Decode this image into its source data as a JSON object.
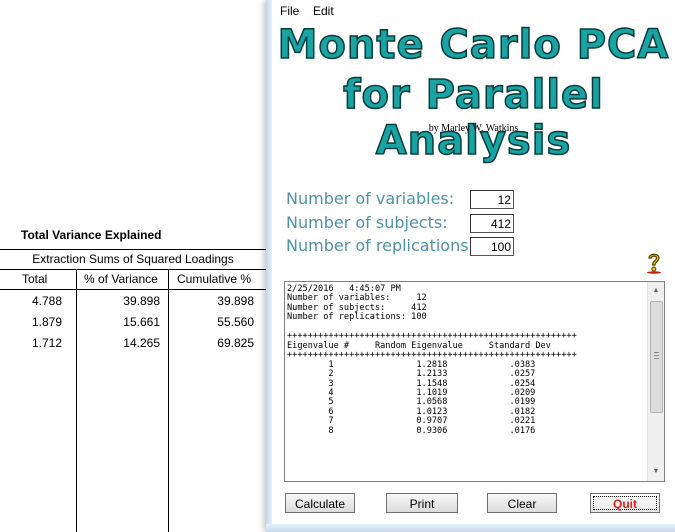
{
  "background_table": {
    "title": "Total Variance Explained",
    "group_header": "Extraction Sums of Squared Loadings",
    "columns": [
      "Total",
      "% of Variance",
      "Cumulative %"
    ],
    "rows": [
      [
        "4.788",
        "39.898",
        "39.898"
      ],
      [
        "1.879",
        "15.661",
        "55.560"
      ],
      [
        "1.712",
        "14.265",
        "69.825"
      ]
    ]
  },
  "window": {
    "menu": [
      "File",
      "Edit"
    ],
    "title_line1": "Monte Carlo PCA",
    "title_line2": "for Parallel Analysis",
    "byline": "by Marley W. Watkins",
    "params": [
      {
        "label": "Number of variables:",
        "value": "12"
      },
      {
        "label": "Number of subjects:",
        "value": "412"
      },
      {
        "label": "Number of replications:",
        "value": "100"
      }
    ],
    "help_icon": "question-mark-icon",
    "output": {
      "header_lines": [
        "2/25/2016   4:45:07 PM",
        "Number of variables:     12",
        "Number of subjects:     412",
        "Number of replications: 100",
        "",
        "++++++++++++++++++++++++++++++++++++++++++++++++++++++++",
        "Eigenvalue #     Random Eigenvalue     Standard Dev",
        "++++++++++++++++++++++++++++++++++++++++++++++++++++++++"
      ],
      "rows": [
        [
          "1",
          "1.2818",
          ".0383"
        ],
        [
          "2",
          "1.2133",
          ".0257"
        ],
        [
          "3",
          "1.1548",
          ".0254"
        ],
        [
          "4",
          "1.1019",
          ".0209"
        ],
        [
          "5",
          "1.0568",
          ".0199"
        ],
        [
          "6",
          "1.0123",
          ".0182"
        ],
        [
          "7",
          "0.9707",
          ".0221"
        ],
        [
          "8",
          "0.9306",
          ".0176"
        ]
      ]
    },
    "buttons": {
      "calculate": "Calculate",
      "print": "Print",
      "clear": "Clear",
      "quit": "Quit"
    },
    "colors": {
      "title_fill": "#1aa3a3",
      "title_outline": "#063c3c",
      "label_text": "#4f93a8",
      "quit_text": "#e0201a"
    }
  }
}
